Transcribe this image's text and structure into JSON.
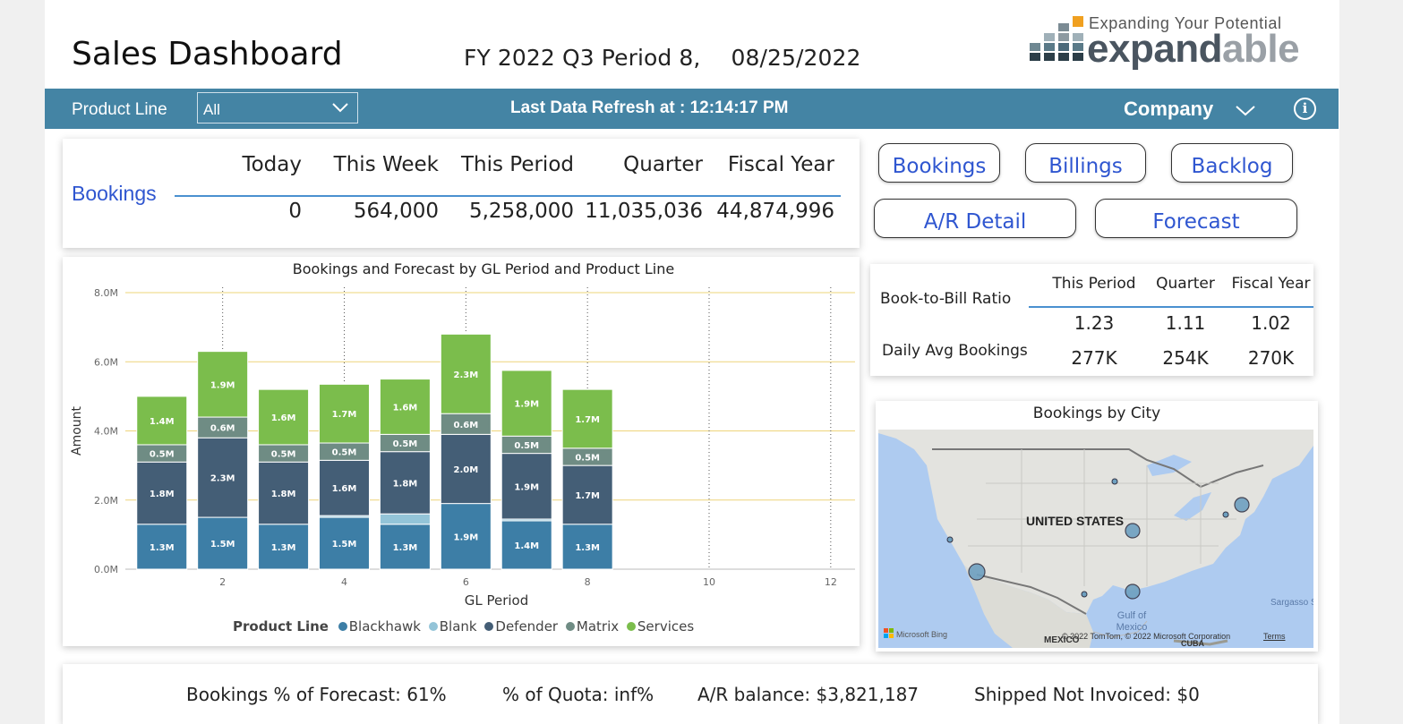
{
  "header": {
    "title": "Sales Dashboard",
    "period": "FY 2022 Q3 Period 8,",
    "date": "08/25/2022",
    "logo_tagline": "Expanding Your Potential",
    "logo_word_a": "expand",
    "logo_word_b": "able"
  },
  "toolbar": {
    "product_line_label": "Product Line",
    "product_line_value": "All",
    "refresh_text": "Last Data Refresh at : 12:14:17 PM",
    "company_label": "Company",
    "info_glyph": "i"
  },
  "kpi": {
    "label": "Bookings",
    "columns": [
      {
        "header": "Today",
        "value": "0"
      },
      {
        "header": "This Week",
        "value": "564,000"
      },
      {
        "header": "This Period",
        "value": "5,258,000"
      },
      {
        "header": "Quarter",
        "value": "11,035,036"
      },
      {
        "header": "Fiscal Year",
        "value": "44,874,996"
      }
    ]
  },
  "nav_buttons": {
    "bookings": "Bookings",
    "billings": "Billings",
    "backlog": "Backlog",
    "ar_detail": "A/R Detail",
    "forecast": "Forecast"
  },
  "chart_data": {
    "type": "bar",
    "stacked": true,
    "title": "Bookings and Forecast by GL Period and Product Line",
    "xlabel": "GL Period",
    "ylabel": "Amount",
    "ylim": [
      0,
      8
    ],
    "yticks": [
      "0.0M",
      "2.0M",
      "4.0M",
      "6.0M",
      "8.0M"
    ],
    "xlim": [
      0.4,
      12.4
    ],
    "xticks": [
      2,
      4,
      6,
      8,
      10,
      12
    ],
    "categories": [
      1,
      2,
      3,
      4,
      5,
      6,
      7,
      8
    ],
    "legend_title": "Product Line",
    "legend_position": "bottom",
    "series": [
      {
        "name": "Blackhawk",
        "color": "#3d7ea6",
        "values": [
          1.3,
          1.5,
          1.3,
          1.5,
          1.3,
          1.9,
          1.4,
          1.3
        ],
        "labels": [
          "1.3M",
          "1.5M",
          "1.3M",
          "1.5M",
          "1.3M",
          "1.9M",
          "1.4M",
          "1.3M"
        ]
      },
      {
        "name": "Blank",
        "color": "#93c4d8",
        "values": [
          0,
          0,
          0,
          0.05,
          0.3,
          0,
          0.05,
          0
        ],
        "labels": [
          "",
          "",
          "",
          "",
          "",
          "",
          "",
          ""
        ]
      },
      {
        "name": "Defender",
        "color": "#445e76",
        "values": [
          1.8,
          2.3,
          1.8,
          1.6,
          1.8,
          2.0,
          1.9,
          1.7
        ],
        "labels": [
          "1.8M",
          "2.3M",
          "1.8M",
          "1.6M",
          "1.8M",
          "2.0M",
          "1.9M",
          "1.7M"
        ]
      },
      {
        "name": "Matrix",
        "color": "#6f8c84",
        "values": [
          0.5,
          0.6,
          0.5,
          0.5,
          0.5,
          0.6,
          0.5,
          0.5
        ],
        "labels": [
          "0.5M",
          "0.6M",
          "0.5M",
          "0.5M",
          "0.5M",
          "0.6M",
          "0.5M",
          "0.5M"
        ]
      },
      {
        "name": "Services",
        "color": "#7bbd4c",
        "values": [
          1.4,
          1.9,
          1.6,
          1.7,
          1.6,
          2.3,
          1.9,
          1.7
        ],
        "labels": [
          "1.4M",
          "1.9M",
          "1.6M",
          "1.7M",
          "1.6M",
          "2.3M",
          "1.9M",
          "1.7M"
        ]
      }
    ]
  },
  "book_to_bill": {
    "row1_label": "Book-to-Bill Ratio",
    "row2_label": "Daily Avg Bookings",
    "columns": [
      {
        "header": "This Period",
        "ratio": "1.23",
        "daily": "277K"
      },
      {
        "header": "Quarter",
        "ratio": "1.11",
        "daily": "254K"
      },
      {
        "header": "Fiscal Year",
        "ratio": "1.02",
        "daily": "270K"
      }
    ]
  },
  "map": {
    "title": "Bookings by City",
    "country_label": "UNITED STATES",
    "gulf_label": "Gulf of Mexico",
    "mexico_label": "MEXICO",
    "cuba_label": "CUBA",
    "sargasso_label": "Sargasso S",
    "bing_label": "Microsoft Bing",
    "copyright": "© 2022 TomTom, © 2022 Microsoft Corporation",
    "terms": "Terms"
  },
  "summary": {
    "bookings_pct": "Bookings % of Forecast: 61%",
    "quota_pct": "% of Quota: inf%",
    "ar_balance": "A/R balance: $3,821,187",
    "shipped_not_invoiced": "Shipped Not Invoiced: $0"
  }
}
